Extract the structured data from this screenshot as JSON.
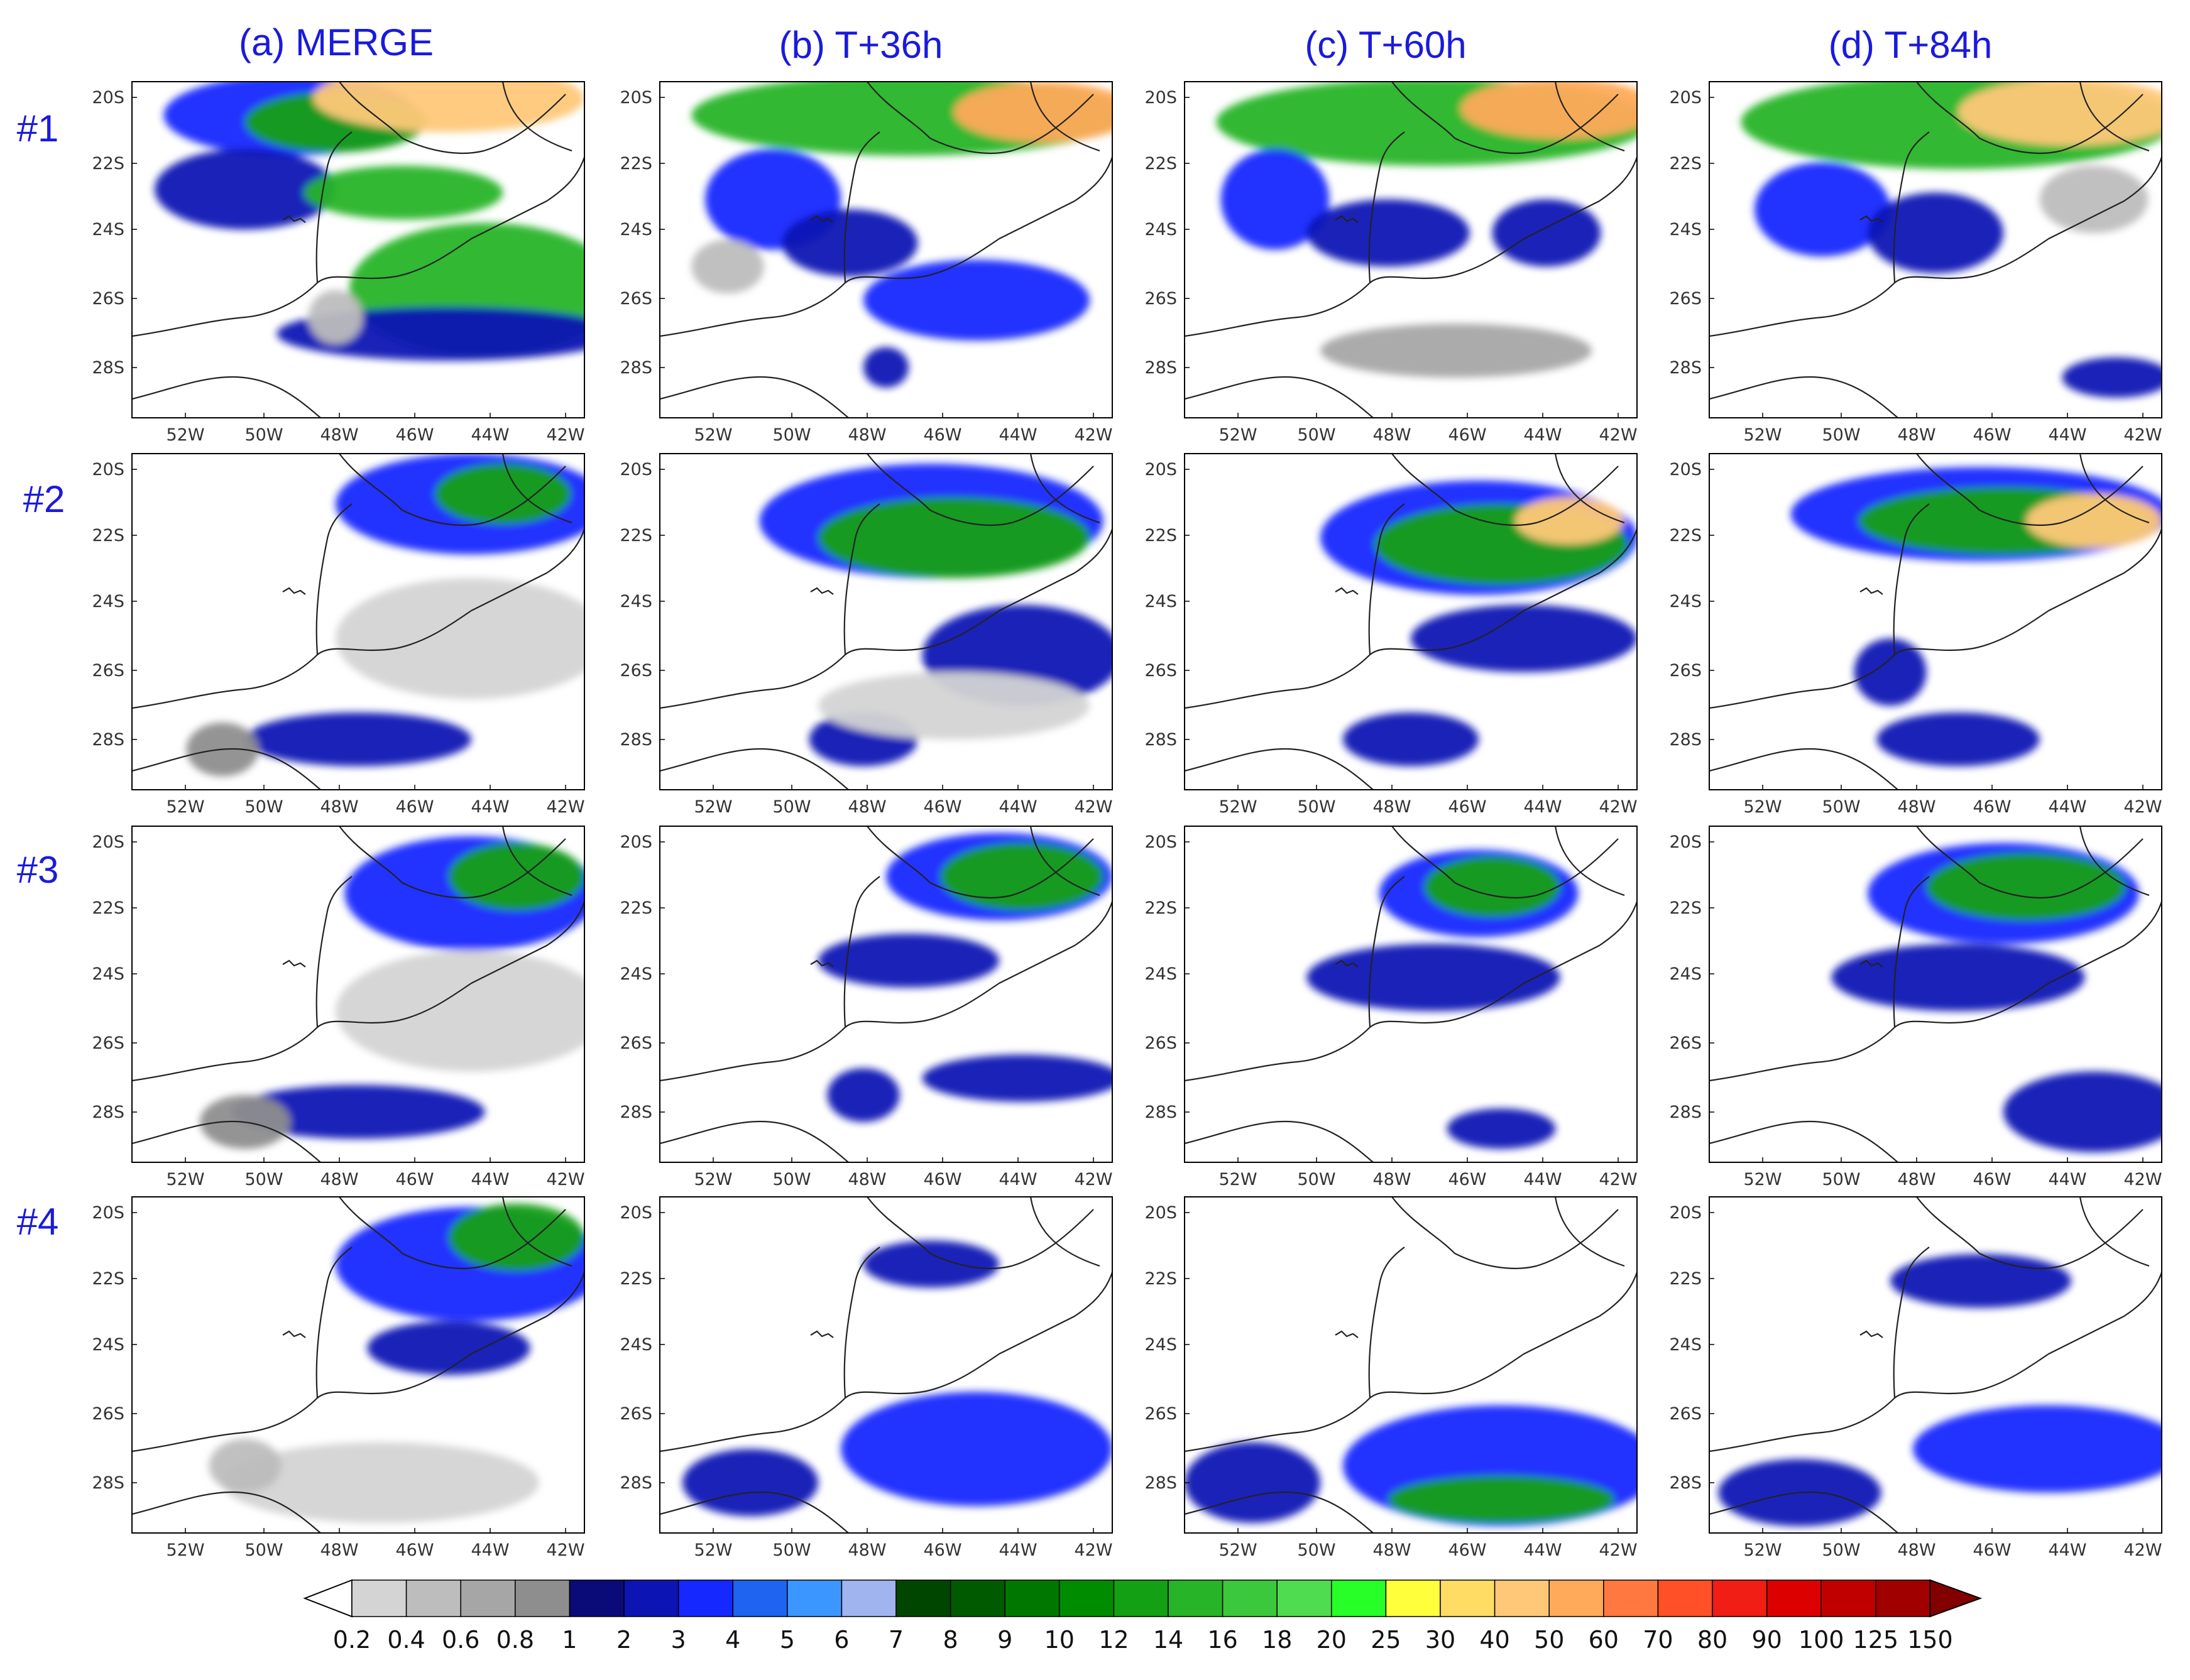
{
  "columns": [
    "(a) MERGE",
    "(b) T+36h",
    "(c) T+60h",
    "(d) T+84h"
  ],
  "rows": [
    "#1",
    "#2",
    "#3",
    "#4"
  ],
  "lat_ticks": [
    "20S",
    "22S",
    "24S",
    "26S",
    "28S"
  ],
  "lon_ticks": [
    "52W",
    "50W",
    "48W",
    "46W",
    "44W",
    "42W"
  ],
  "colorbar": {
    "labels": [
      "0.2",
      "0.4",
      "0.6",
      "0.8",
      "1",
      "2",
      "3",
      "4",
      "5",
      "6",
      "7",
      "8",
      "9",
      "10",
      "12",
      "14",
      "16",
      "18",
      "20",
      "25",
      "30",
      "40",
      "50",
      "60",
      "70",
      "80",
      "90",
      "100",
      "125",
      "150"
    ],
    "colors": [
      "#d4d4d4",
      "#bdbdbd",
      "#a6a6a6",
      "#8e8e8e",
      "#0a0a78",
      "#0d14b4",
      "#1428ff",
      "#1e64f0",
      "#3c96ff",
      "#a0b4f0",
      "#004600",
      "#005a00",
      "#007800",
      "#008c00",
      "#14a014",
      "#28b428",
      "#3cc83c",
      "#50dc50",
      "#28ff28",
      "#ffff3c",
      "#ffdc64",
      "#ffc878",
      "#ffaa5a",
      "#ff7840",
      "#ff5028",
      "#f01e14",
      "#dc0000",
      "#c00000",
      "#a00000",
      "#820000"
    ]
  },
  "panels": [
    [
      {
        "blobs": [
          [
            0.35,
            0.1,
            0.28,
            0.12,
            "#1428ff"
          ],
          [
            0.45,
            0.12,
            0.2,
            0.09,
            "#14a014"
          ],
          [
            0.7,
            0.05,
            0.3,
            0.1,
            "#ffc878"
          ],
          [
            0.25,
            0.32,
            0.2,
            0.12,
            "#0d14b4"
          ],
          [
            0.6,
            0.33,
            0.22,
            0.08,
            "#28b428"
          ],
          [
            0.78,
            0.62,
            0.3,
            0.2,
            "#28b428"
          ],
          [
            0.7,
            0.75,
            0.38,
            0.08,
            "#0d14b4"
          ],
          [
            0.45,
            0.7,
            0.06,
            0.08,
            "#bdbdbd"
          ]
        ]
      },
      {
        "blobs": [
          [
            0.55,
            0.1,
            0.48,
            0.12,
            "#28b428"
          ],
          [
            0.85,
            0.09,
            0.2,
            0.09,
            "#ffaa5a"
          ],
          [
            0.25,
            0.35,
            0.15,
            0.15,
            "#1428ff"
          ],
          [
            0.42,
            0.48,
            0.15,
            0.1,
            "#0d14b4"
          ],
          [
            0.7,
            0.65,
            0.25,
            0.12,
            "#1428ff"
          ],
          [
            0.5,
            0.85,
            0.05,
            0.06,
            "#0d14b4"
          ],
          [
            0.15,
            0.55,
            0.08,
            0.08,
            "#bdbdbd"
          ]
        ]
      },
      {
        "blobs": [
          [
            0.55,
            0.12,
            0.48,
            0.13,
            "#28b428"
          ],
          [
            0.83,
            0.08,
            0.22,
            0.09,
            "#ffaa5a"
          ],
          [
            0.2,
            0.35,
            0.12,
            0.15,
            "#1428ff"
          ],
          [
            0.45,
            0.45,
            0.18,
            0.1,
            "#0d14b4"
          ],
          [
            0.8,
            0.45,
            0.12,
            0.1,
            "#0d14b4"
          ],
          [
            0.6,
            0.8,
            0.3,
            0.08,
            "#a6a6a6"
          ]
        ]
      },
      {
        "blobs": [
          [
            0.55,
            0.12,
            0.48,
            0.14,
            "#28b428"
          ],
          [
            0.8,
            0.09,
            0.25,
            0.1,
            "#ffc878"
          ],
          [
            0.25,
            0.38,
            0.15,
            0.14,
            "#1428ff"
          ],
          [
            0.5,
            0.45,
            0.15,
            0.12,
            "#0d14b4"
          ],
          [
            0.85,
            0.35,
            0.12,
            0.1,
            "#bdbdbd"
          ],
          [
            0.9,
            0.88,
            0.12,
            0.06,
            "#0d14b4"
          ]
        ]
      }
    ],
    [
      {
        "blobs": [
          [
            0.75,
            0.15,
            0.3,
            0.15,
            "#1428ff"
          ],
          [
            0.82,
            0.12,
            0.15,
            0.09,
            "#14a014"
          ],
          [
            0.75,
            0.55,
            0.3,
            0.18,
            "#d4d4d4"
          ],
          [
            0.5,
            0.85,
            0.25,
            0.08,
            "#0d14b4"
          ],
          [
            0.2,
            0.88,
            0.08,
            0.08,
            "#8e8e8e"
          ]
        ]
      },
      {
        "blobs": [
          [
            0.6,
            0.2,
            0.38,
            0.17,
            "#1428ff"
          ],
          [
            0.65,
            0.25,
            0.3,
            0.12,
            "#14a014"
          ],
          [
            0.8,
            0.6,
            0.22,
            0.15,
            "#0d14b4"
          ],
          [
            0.45,
            0.85,
            0.12,
            0.08,
            "#0d14b4"
          ],
          [
            0.65,
            0.75,
            0.3,
            0.1,
            "#d4d4d4"
          ]
        ]
      },
      {
        "blobs": [
          [
            0.65,
            0.25,
            0.35,
            0.17,
            "#1428ff"
          ],
          [
            0.7,
            0.27,
            0.28,
            0.12,
            "#14a014"
          ],
          [
            0.85,
            0.2,
            0.12,
            0.07,
            "#ffc878"
          ],
          [
            0.75,
            0.55,
            0.25,
            0.1,
            "#0d14b4"
          ],
          [
            0.5,
            0.85,
            0.15,
            0.08,
            "#0d14b4"
          ]
        ]
      },
      {
        "blobs": [
          [
            0.6,
            0.18,
            0.42,
            0.14,
            "#1428ff"
          ],
          [
            0.65,
            0.2,
            0.32,
            0.1,
            "#14a014"
          ],
          [
            0.85,
            0.2,
            0.15,
            0.08,
            "#ffc878"
          ],
          [
            0.4,
            0.65,
            0.08,
            0.1,
            "#0d14b4"
          ],
          [
            0.55,
            0.85,
            0.18,
            0.08,
            "#0d14b4"
          ]
        ]
      }
    ],
    [
      {
        "blobs": [
          [
            0.75,
            0.2,
            0.28,
            0.17,
            "#1428ff"
          ],
          [
            0.85,
            0.15,
            0.15,
            0.1,
            "#14a014"
          ],
          [
            0.75,
            0.55,
            0.3,
            0.18,
            "#d4d4d4"
          ],
          [
            0.5,
            0.85,
            0.28,
            0.08,
            "#0d14b4"
          ],
          [
            0.25,
            0.88,
            0.1,
            0.08,
            "#8e8e8e"
          ]
        ]
      },
      {
        "blobs": [
          [
            0.75,
            0.15,
            0.25,
            0.13,
            "#1428ff"
          ],
          [
            0.8,
            0.15,
            0.18,
            0.1,
            "#14a014"
          ],
          [
            0.55,
            0.4,
            0.2,
            0.08,
            "#0d14b4"
          ],
          [
            0.8,
            0.75,
            0.22,
            0.07,
            "#0d14b4"
          ],
          [
            0.45,
            0.8,
            0.08,
            0.08,
            "#0d14b4"
          ]
        ]
      },
      {
        "blobs": [
          [
            0.65,
            0.2,
            0.22,
            0.13,
            "#1428ff"
          ],
          [
            0.68,
            0.18,
            0.15,
            0.09,
            "#14a014"
          ],
          [
            0.55,
            0.45,
            0.28,
            0.1,
            "#0d14b4"
          ],
          [
            0.7,
            0.9,
            0.12,
            0.06,
            "#0d14b4"
          ]
        ]
      },
      {
        "blobs": [
          [
            0.65,
            0.2,
            0.3,
            0.15,
            "#1428ff"
          ],
          [
            0.7,
            0.18,
            0.22,
            0.1,
            "#14a014"
          ],
          [
            0.55,
            0.45,
            0.28,
            0.1,
            "#0d14b4"
          ],
          [
            0.85,
            0.85,
            0.2,
            0.12,
            "#0d14b4"
          ]
        ]
      }
    ],
    [
      {
        "blobs": [
          [
            0.75,
            0.2,
            0.3,
            0.17,
            "#1428ff"
          ],
          [
            0.85,
            0.12,
            0.15,
            0.1,
            "#14a014"
          ],
          [
            0.7,
            0.45,
            0.18,
            0.08,
            "#0d14b4"
          ],
          [
            0.55,
            0.85,
            0.35,
            0.12,
            "#d4d4d4"
          ],
          [
            0.25,
            0.8,
            0.08,
            0.08,
            "#bdbdbd"
          ]
        ]
      },
      {
        "blobs": [
          [
            0.6,
            0.2,
            0.15,
            0.07,
            "#0d14b4"
          ],
          [
            0.7,
            0.75,
            0.3,
            0.17,
            "#1428ff"
          ],
          [
            0.2,
            0.85,
            0.15,
            0.1,
            "#0d14b4"
          ]
        ]
      },
      {
        "blobs": [
          [
            0.7,
            0.8,
            0.35,
            0.18,
            "#1428ff"
          ],
          [
            0.7,
            0.9,
            0.25,
            0.07,
            "#14a014"
          ],
          [
            0.15,
            0.85,
            0.15,
            0.12,
            "#0d14b4"
          ]
        ]
      },
      {
        "blobs": [
          [
            0.6,
            0.25,
            0.2,
            0.08,
            "#0d14b4"
          ],
          [
            0.75,
            0.75,
            0.3,
            0.13,
            "#1428ff"
          ],
          [
            0.2,
            0.88,
            0.18,
            0.1,
            "#0d14b4"
          ]
        ]
      }
    ]
  ]
}
